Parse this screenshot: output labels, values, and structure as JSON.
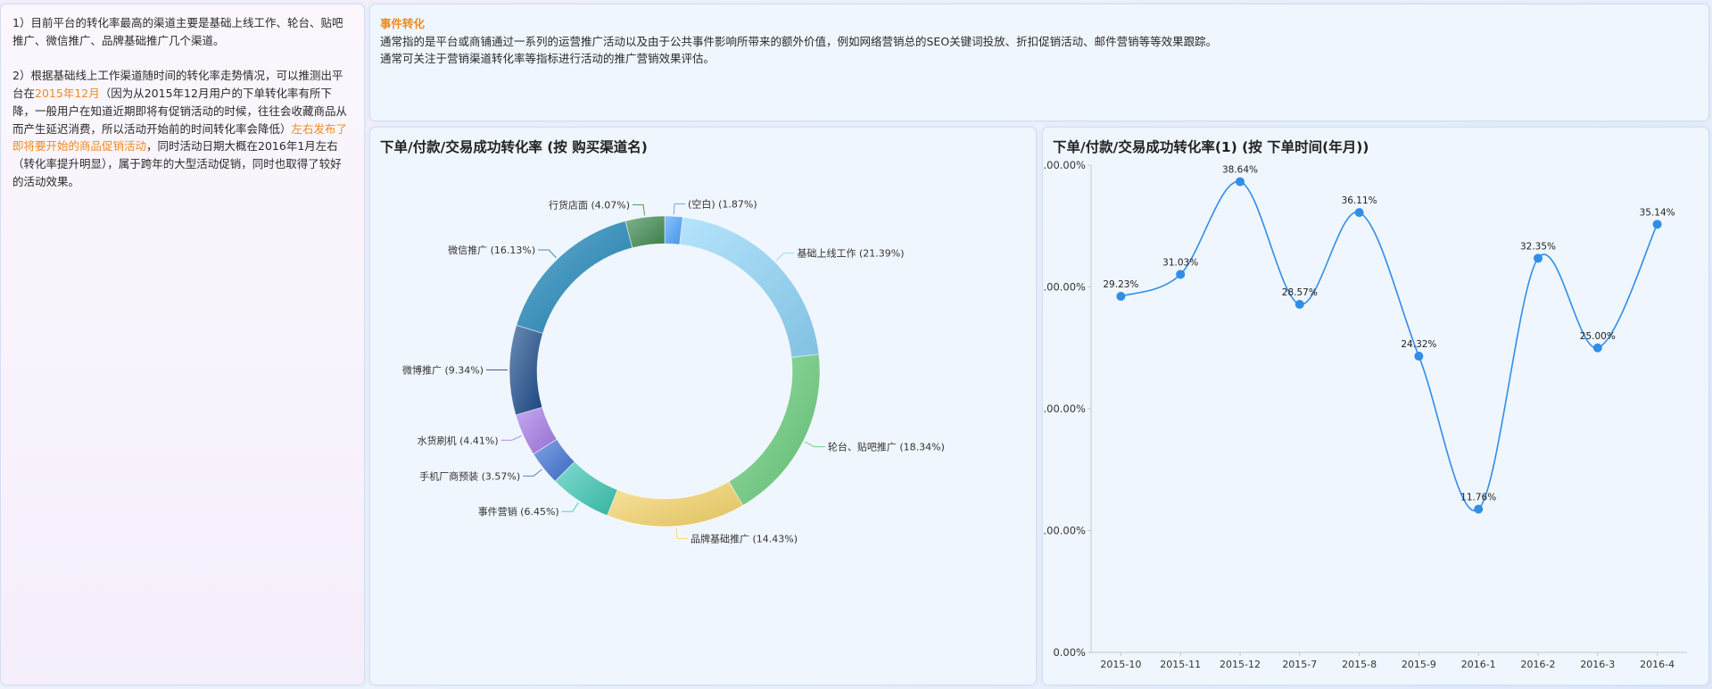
{
  "notes": {
    "p1": "1）目前平台的转化率最高的渠道主要是基础上线工作、轮台、贴吧推广、微信推广、品牌基础推广几个渠道。",
    "p2_a": "2）根据基础线上工作渠道随时间的转化率走势情况，可以推测出平台在",
    "p2_hl1": "2015年12月",
    "p2_b": "（因为从2015年12月用户的下单转化率有所下降，一般用户在知道近期即将有促销活动的时候，往往会收藏商品从而产生延迟消费，所以活动开始前的时间转化率会降低）",
    "p2_hl2": "左右发布了即将要开始的商品促销活动",
    "p2_c": "，同时活动日期大概在2016年1月左右（转化率提升明显），属于跨年的大型活动促销，同时也取得了较好的活动效果。"
  },
  "event": {
    "title": "事件转化",
    "line1": "通常指的是平台或商铺通过一系列的运营推广活动以及由于公共事件影响所带来的额外价值，例如网络营销总的SEO关键词投放、折扣促销活动、邮件营销等等效果跟踪。",
    "line2": "通常可关注于营销渠道转化率等指标进行活动的推广营销效果评估。"
  },
  "chart_data": [
    {
      "type": "pie",
      "title": "下单/付款/交易成功转化率 (按 购买渠道名)",
      "donut": true,
      "slices": [
        {
          "label": "(空白) (1.87%)",
          "value": 1.87,
          "color": "#4aa3ff"
        },
        {
          "label": "基础上线工作 (21.39%)",
          "value": 21.39,
          "color": "#8fd6fb"
        },
        {
          "label": "轮台、贴吧推广 (18.34%)",
          "value": 18.34,
          "color": "#66cc7a"
        },
        {
          "label": "品牌基础推广 (14.43%)",
          "value": 14.43,
          "color": "#f7d56a"
        },
        {
          "label": "事件营销 (6.45%)",
          "value": 6.45,
          "color": "#3cc7b4"
        },
        {
          "label": "手机厂商预装 (3.57%)",
          "value": 3.57,
          "color": "#3f72d4"
        },
        {
          "label": "水货刷机 (4.41%)",
          "value": 4.41,
          "color": "#a67be8"
        },
        {
          "label": "微博推广 (9.34%)",
          "value": 9.34,
          "color": "#1d4d8c"
        },
        {
          "label": "微信推广 (16.13%)",
          "value": 16.13,
          "color": "#1a84b8"
        },
        {
          "label": "行货店面 (4.07%)",
          "value": 4.07,
          "color": "#3f8a4f"
        }
      ]
    },
    {
      "type": "line",
      "title": "下单/付款/交易成功转化率(1) (按 下单时间(年月))",
      "categories": [
        "2015-10",
        "2015-11",
        "2015-12",
        "2015-7",
        "2015-8",
        "2015-9",
        "2016-1",
        "2016-2",
        "2016-3",
        "2016-4"
      ],
      "values": [
        29.23,
        31.03,
        38.64,
        28.57,
        36.11,
        24.32,
        11.76,
        32.35,
        25.0,
        35.14
      ],
      "point_labels": [
        "29.23%",
        "31.03%",
        "38.64%",
        "28.57%",
        "36.11%",
        "24.32%",
        "11.76%",
        "32.35%",
        "25.00%",
        "35.14%"
      ],
      "y_tick_labels": [
        ".00.00%",
        ".00.00%",
        ".00.00%",
        ".00.00%",
        "0.00%"
      ],
      "ylim": [
        0,
        40
      ],
      "smooth": true,
      "color": "#2f8ee8"
    }
  ]
}
